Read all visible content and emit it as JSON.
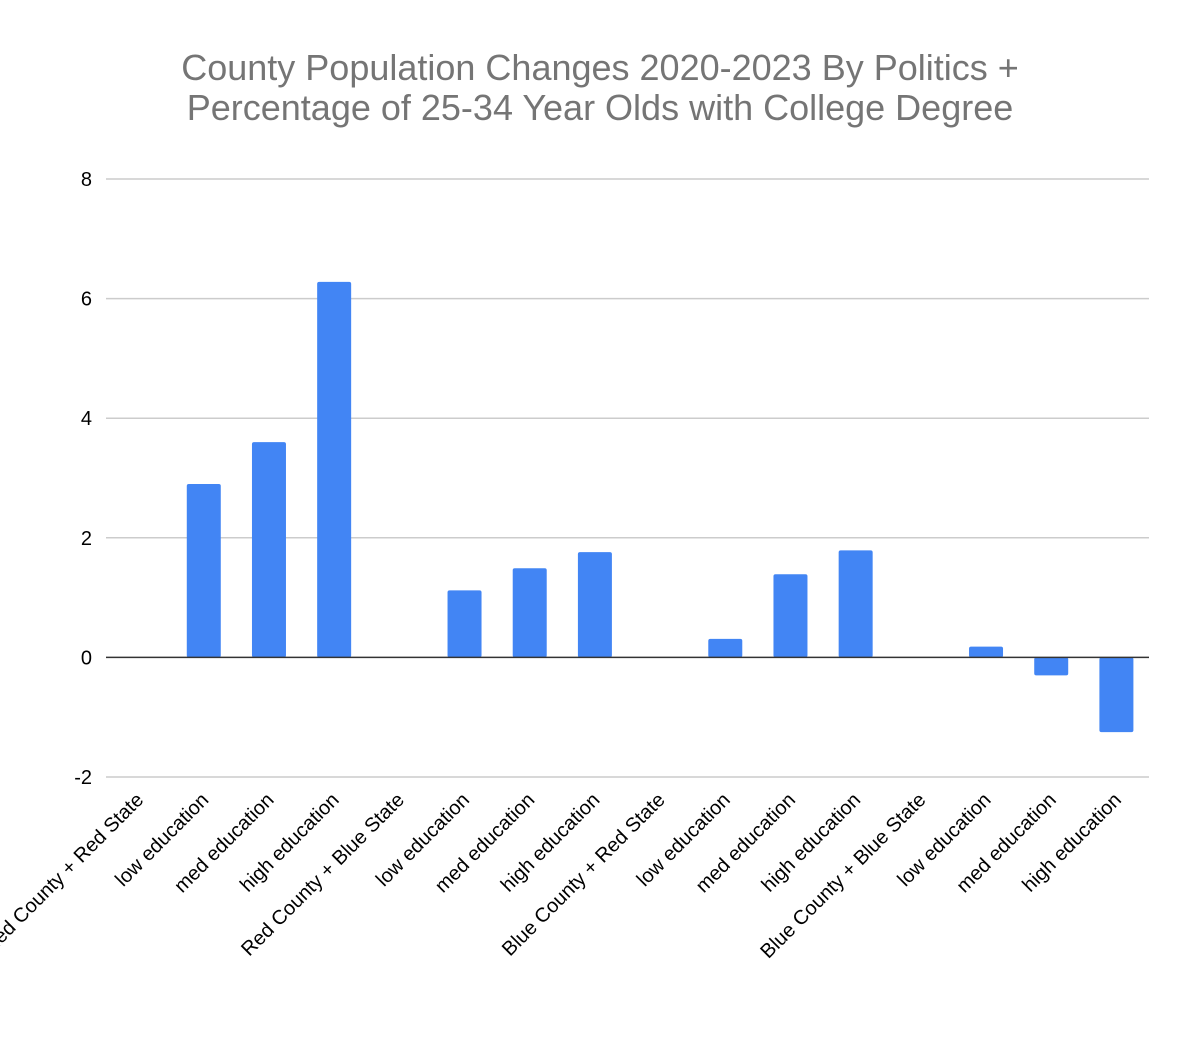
{
  "chart_data": {
    "type": "bar",
    "title": [
      "County Population Changes 2020-2023 By Politics +",
      "Percentage of 25-34 Year Olds with College Degree"
    ],
    "xlabel": "",
    "ylabel": "",
    "ylim": [
      -2,
      8
    ],
    "yticks": [
      8,
      6,
      4,
      2,
      0,
      -2
    ],
    "grid": true,
    "legend": "none",
    "categories": [
      "Red County + Red State",
      "low education",
      "med education",
      "high education",
      "Red County + Blue State",
      "low education",
      "med education",
      "high education",
      "Blue County + Red State",
      "low education",
      "med education",
      "high education",
      "Blue County + Blue State",
      "low education",
      "med education",
      "high education"
    ],
    "values": [
      null,
      2.9,
      3.6,
      6.28,
      null,
      1.12,
      1.49,
      1.76,
      null,
      0.31,
      1.39,
      1.79,
      null,
      0.18,
      -0.3,
      -1.25
    ],
    "bar_color": "#4285f4",
    "grid_color": "#cccccc"
  }
}
